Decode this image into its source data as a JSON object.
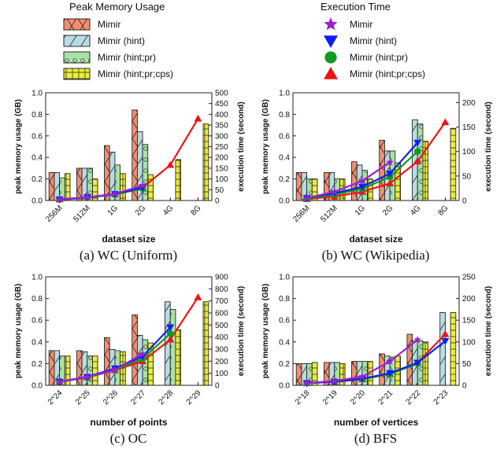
{
  "legend": {
    "memory_title": "Peak Memory Usage",
    "time_title": "Execution Time",
    "variants": [
      "Mimir",
      "Mimir (hint)",
      "Mimir (hint;pr)",
      "Mimir (hint;pr;cps)"
    ]
  },
  "colors": {
    "bars": [
      "#f08f70",
      "#b9dbe6",
      "#a9e2a5",
      "#ecec3a"
    ],
    "lines": [
      "#9b1fd6",
      "#0f1ff5",
      "#0f9b1f",
      "#ef1414"
    ]
  },
  "chart_data": [
    {
      "id": "wc-uniform",
      "type": "bar",
      "caption": "(a) WC (Uniform)",
      "xlabel": "dataset size",
      "ylabel": "peak memory usage (GB)",
      "y2label": "execution time (second)",
      "categories": [
        "256M",
        "512M",
        "1G",
        "2G",
        "4G",
        "8G"
      ],
      "ylim": [
        0,
        1.0
      ],
      "yticks": [
        0.0,
        0.2,
        0.4,
        0.6,
        0.8,
        1.0
      ],
      "y2lim": [
        0,
        500
      ],
      "y2ticks": [
        0,
        50,
        100,
        150,
        200,
        250,
        300,
        350,
        400,
        450,
        500
      ],
      "memory_series": [
        {
          "name": "Mimir",
          "values": [
            0.26,
            0.3,
            0.51,
            0.84,
            null,
            null
          ]
        },
        {
          "name": "Mimir (hint)",
          "values": [
            0.26,
            0.3,
            0.45,
            0.64,
            null,
            null
          ]
        },
        {
          "name": "Mimir (hint;pr)",
          "values": [
            0.21,
            0.3,
            0.33,
            0.52,
            null,
            null
          ]
        },
        {
          "name": "Mimir (hint;pr;cps)",
          "values": [
            0.25,
            0.2,
            0.25,
            0.24,
            0.38,
            0.71
          ]
        }
      ],
      "time_series": [
        {
          "name": "Mimir",
          "values": [
            5,
            15,
            30,
            70,
            null,
            null
          ]
        },
        {
          "name": "Mimir (hint)",
          "values": [
            5,
            15,
            30,
            60,
            null,
            null
          ]
        },
        {
          "name": "Mimir (hint;pr)",
          "values": [
            5,
            12,
            28,
            55,
            null,
            null
          ]
        },
        {
          "name": "Mimir (hint;pr;cps)",
          "values": [
            5,
            12,
            30,
            60,
            165,
            380
          ]
        }
      ]
    },
    {
      "id": "wc-wikipedia",
      "type": "bar",
      "caption": "(b) WC (Wikipedia)",
      "xlabel": "dataset size",
      "ylabel": "peak memory usage (GB)",
      "y2label": "execution time (second)",
      "categories": [
        "256M",
        "512M",
        "1G",
        "2G",
        "4G",
        "8G"
      ],
      "ylim": [
        0,
        1.0
      ],
      "yticks": [
        0.0,
        0.2,
        0.4,
        0.6,
        0.8,
        1.0
      ],
      "y2lim": [
        0,
        220
      ],
      "y2ticks": [
        0,
        50,
        100,
        150,
        200
      ],
      "memory_series": [
        {
          "name": "Mimir",
          "values": [
            0.26,
            0.26,
            0.36,
            0.56,
            null,
            null
          ]
        },
        {
          "name": "Mimir (hint)",
          "values": [
            0.26,
            0.26,
            0.33,
            0.46,
            0.75,
            null
          ]
        },
        {
          "name": "Mimir (hint;pr)",
          "values": [
            0.2,
            0.2,
            0.28,
            0.46,
            0.71,
            null
          ]
        },
        {
          "name": "Mimir (hint;pr;cps)",
          "values": [
            0.2,
            0.2,
            0.2,
            0.35,
            0.55,
            0.67
          ]
        }
      ],
      "time_series": [
        {
          "name": "Mimir",
          "values": [
            5,
            18,
            40,
            78,
            null,
            null
          ]
        },
        {
          "name": "Mimir (hint)",
          "values": [
            5,
            15,
            28,
            55,
            118,
            null
          ]
        },
        {
          "name": "Mimir (hint;pr)",
          "values": [
            4,
            12,
            24,
            48,
            100,
            null
          ]
        },
        {
          "name": "Mimir (hint;pr;cps)",
          "values": [
            3,
            8,
            18,
            35,
            80,
            160
          ]
        }
      ]
    },
    {
      "id": "oc",
      "type": "bar",
      "caption": "(c) OC",
      "xlabel": "number of points",
      "ylabel": "peak memory usage (GB)",
      "y2label": "execution time (second)",
      "categories": [
        "2^24",
        "2^25",
        "2^26",
        "2^27",
        "2^28",
        "2^29"
      ],
      "ylim": [
        0,
        1.0
      ],
      "yticks": [
        0.0,
        0.2,
        0.4,
        0.6,
        0.8,
        1.0
      ],
      "y2lim": [
        0,
        900
      ],
      "y2ticks": [
        0,
        100,
        200,
        300,
        400,
        500,
        600,
        700,
        800,
        900
      ],
      "memory_series": [
        {
          "name": "Mimir",
          "values": [
            0.32,
            0.32,
            0.44,
            0.65,
            null,
            null
          ]
        },
        {
          "name": "Mimir (hint)",
          "values": [
            0.32,
            0.31,
            0.33,
            0.46,
            0.77,
            null
          ]
        },
        {
          "name": "Mimir (hint;pr)",
          "values": [
            0.27,
            0.27,
            0.32,
            0.42,
            0.7,
            null
          ]
        },
        {
          "name": "Mimir (hint;pr;cps)",
          "values": [
            0.27,
            0.27,
            0.31,
            0.39,
            0.51,
            0.77
          ]
        }
      ],
      "time_series": [
        {
          "name": "Mimir",
          "values": [
            30,
            70,
            130,
            260,
            null,
            null
          ]
        },
        {
          "name": "Mimir (hint)",
          "values": [
            30,
            70,
            140,
            240,
            480,
            null
          ]
        },
        {
          "name": "Mimir (hint;pr)",
          "values": [
            30,
            65,
            130,
            220,
            430,
            null
          ]
        },
        {
          "name": "Mimir (hint;pr;cps)",
          "values": [
            30,
            65,
            125,
            200,
            380,
            730
          ]
        }
      ]
    },
    {
      "id": "bfs",
      "type": "bar",
      "caption": "(d) BFS",
      "xlabel": "number of vertices",
      "ylabel": "peak memory usage (GB)",
      "y2label": "execution time (second)",
      "categories": [
        "2^18",
        "2^19",
        "2^20",
        "2^21",
        "2^22",
        "2^23"
      ],
      "ylim": [
        0,
        1.0
      ],
      "yticks": [
        0.0,
        0.2,
        0.4,
        0.6,
        0.8,
        1.0
      ],
      "y2lim": [
        0,
        250
      ],
      "y2ticks": [
        0,
        50,
        100,
        150,
        200,
        250
      ],
      "memory_series": [
        {
          "name": "Mimir",
          "values": [
            0.2,
            0.21,
            0.22,
            0.29,
            0.47,
            null
          ]
        },
        {
          "name": "Mimir (hint)",
          "values": [
            0.2,
            0.21,
            0.22,
            0.27,
            0.41,
            0.67
          ]
        },
        {
          "name": "Mimir (hint;pr)",
          "values": [
            0.2,
            0.21,
            0.22,
            0.26,
            0.41,
            null
          ]
        },
        {
          "name": "Mimir (hint;pr;cps)",
          "values": [
            0.21,
            0.2,
            0.22,
            0.27,
            0.4,
            0.67
          ]
        }
      ],
      "time_series": [
        {
          "name": "Mimir",
          "values": [
            5,
            10,
            20,
            55,
            105,
            null
          ]
        },
        {
          "name": "Mimir (hint)",
          "values": [
            5,
            8,
            15,
            28,
            52,
            102
          ]
        },
        {
          "name": "Mimir (hint;pr)",
          "values": [
            5,
            8,
            14,
            26,
            50,
            null
          ]
        },
        {
          "name": "Mimir (hint;pr;cps)",
          "values": [
            5,
            8,
            14,
            26,
            52,
            118
          ]
        }
      ]
    }
  ]
}
